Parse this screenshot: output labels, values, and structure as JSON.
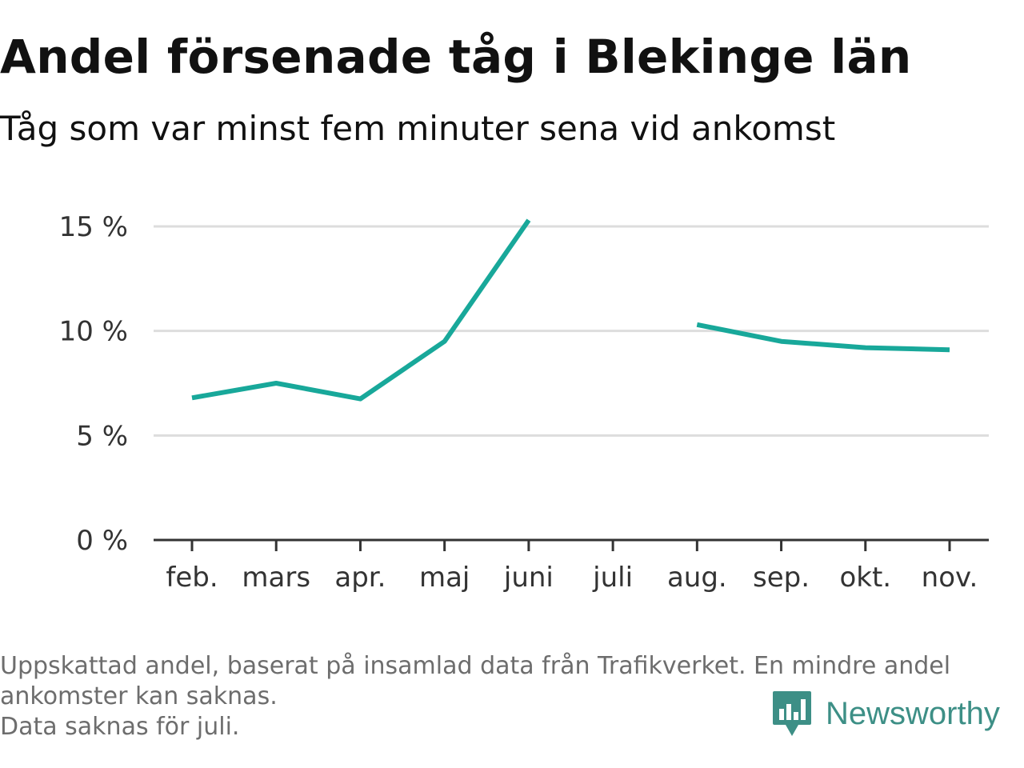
{
  "title": "Andel försenade tåg i Blekinge län",
  "subtitle": "Tåg som var minst fem minuter sena vid ankomst",
  "notes": [
    "Uppskattad andel, baserat på insamlad data från Trafikverket. En mindre andel",
    "ankomster kan saknas.",
    "Data saknas för juli."
  ],
  "brand": {
    "name": "Newsworthy",
    "color": "#3d8f86",
    "icon": "newsworthy-logo-icon"
  },
  "colors": {
    "line": "#18a89a",
    "grid": "#dddddd",
    "axis": "#333333"
  },
  "chart_data": {
    "type": "line",
    "categories": [
      "feb.",
      "mars",
      "apr.",
      "maj",
      "juni",
      "juli",
      "aug.",
      "sep.",
      "okt.",
      "nov."
    ],
    "series": [
      {
        "values": [
          6.8,
          7.5,
          6.75,
          9.5,
          15.3,
          null,
          10.3,
          9.5,
          9.2,
          9.1
        ]
      }
    ],
    "y_ticks": [
      0,
      5,
      10,
      15
    ],
    "y_tick_labels": [
      "0 %",
      "5 %",
      "10 %",
      "15 %"
    ],
    "ylim": [
      0,
      15.5
    ],
    "grid": "horizontal",
    "legend": "none"
  }
}
